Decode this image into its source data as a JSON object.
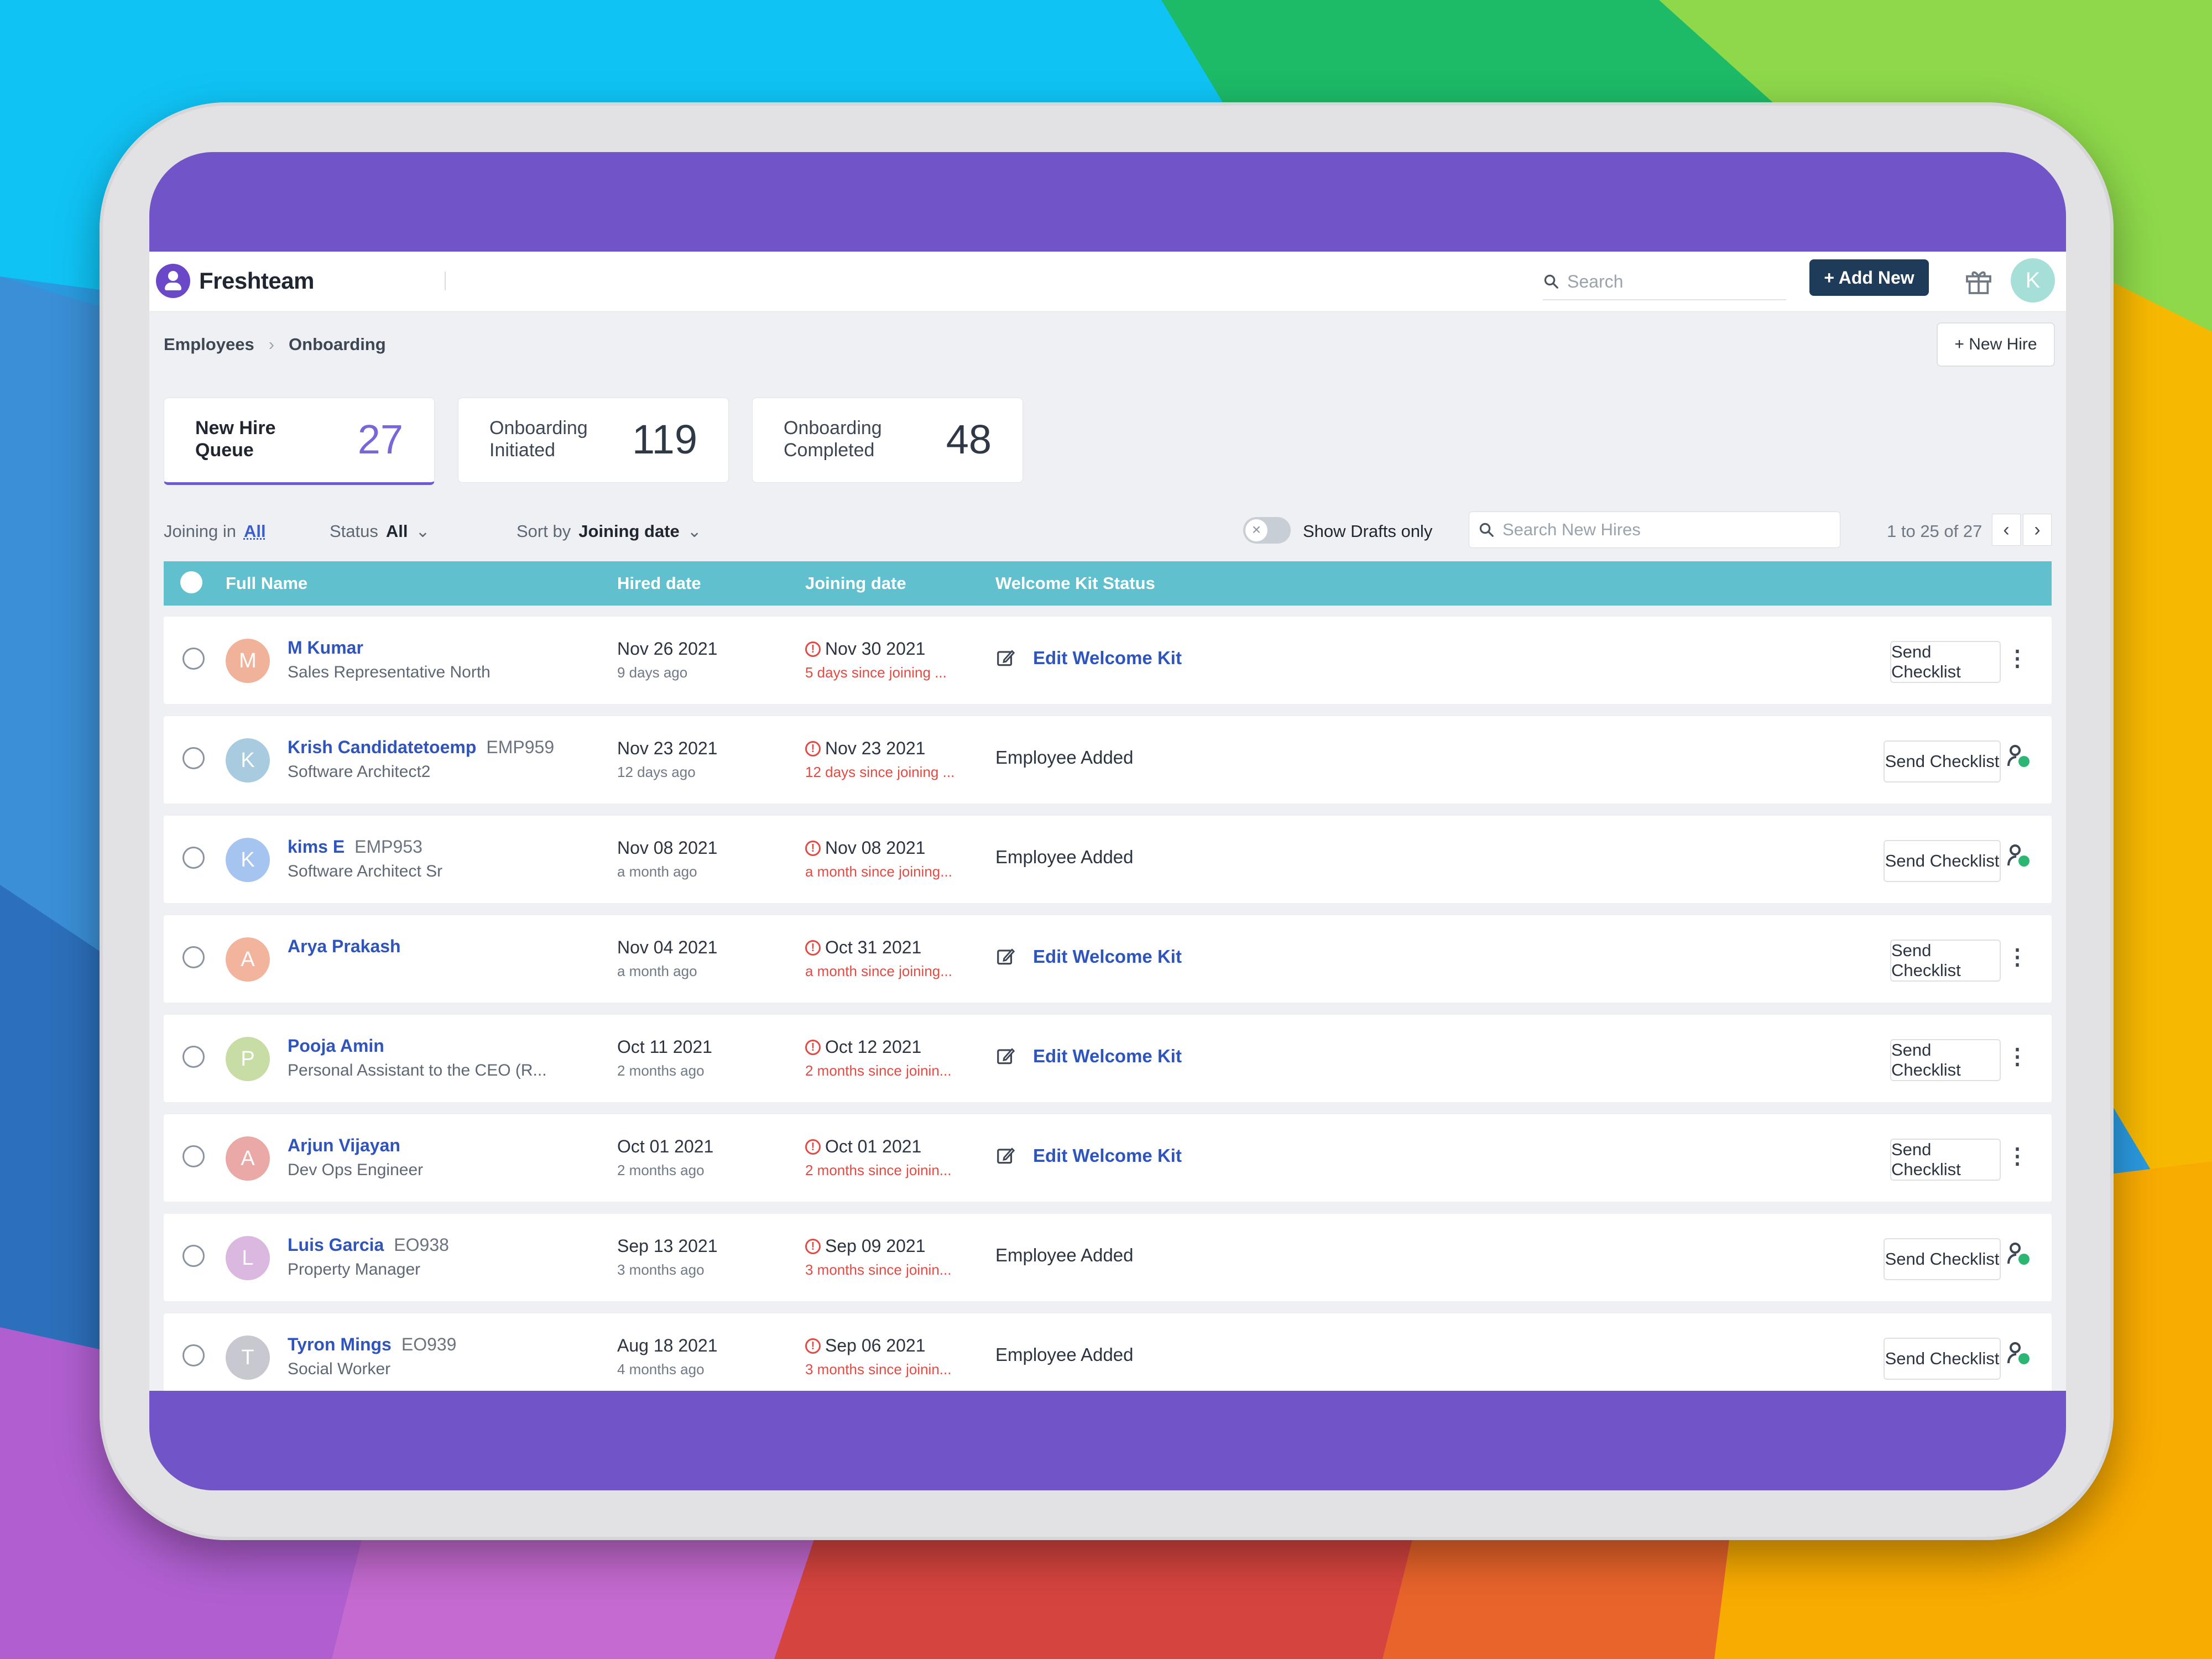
{
  "app": {
    "name": "Freshteam"
  },
  "header": {
    "search_placeholder": "Search",
    "add_new_label": "+ Add New",
    "user_initial": "K"
  },
  "breadcrumb": {
    "root": "Employees",
    "current": "Onboarding"
  },
  "new_hire_button": "+ New Hire",
  "stats": [
    {
      "label": "New Hire Queue",
      "value": "27",
      "active": true
    },
    {
      "label": "Onboarding Initiated",
      "value": "119",
      "active": false
    },
    {
      "label": "Onboarding Completed",
      "value": "48",
      "active": false
    }
  ],
  "filters": {
    "joining_label": "Joining in",
    "joining_value": "All",
    "status_label": "Status",
    "status_value": "All",
    "sort_label": "Sort by",
    "sort_value": "Joining date",
    "drafts_label": "Show Drafts only",
    "search_placeholder": "Search New Hires",
    "pagination": "1 to 25 of 27"
  },
  "table": {
    "columns": [
      "Full Name",
      "Hired date",
      "Joining date",
      "Welcome Kit Status"
    ],
    "send_label": "Send Checklist",
    "rows": [
      {
        "initial": "M",
        "avatar_color": "#f0b39a",
        "name": "M Kumar",
        "code": "",
        "role": "Sales Representative North",
        "hired": "Nov 26 2021",
        "hired_rel": "9 days ago",
        "joining": "Nov 30 2021",
        "joining_rel": "5 days since joining ...",
        "kit": "Edit Welcome Kit",
        "kit_type": "link",
        "action": "menu"
      },
      {
        "initial": "K",
        "avatar_color": "#a9cbe0",
        "name": "Krish Candidatetoemp",
        "code": "EMP959",
        "role": "Software Architect2",
        "hired": "Nov 23 2021",
        "hired_rel": "12 days ago",
        "joining": "Nov 23 2021",
        "joining_rel": "12 days since joining ...",
        "kit": "Employee Added",
        "kit_type": "plain",
        "action": "agent"
      },
      {
        "initial": "K",
        "avatar_color": "#a6c4f0",
        "name": "kims E",
        "code": "EMP953",
        "role": "Software Architect Sr",
        "hired": "Nov 08 2021",
        "hired_rel": "a month ago",
        "joining": "Nov 08 2021",
        "joining_rel": "a month since joining...",
        "kit": "Employee Added",
        "kit_type": "plain",
        "action": "agent"
      },
      {
        "initial": "A",
        "avatar_color": "#f2b49c",
        "name": "Arya Prakash",
        "code": "",
        "role": "",
        "hired": "Nov 04 2021",
        "hired_rel": "a month ago",
        "joining": "Oct 31 2021",
        "joining_rel": "a month since joining...",
        "kit": "Edit Welcome Kit",
        "kit_type": "link",
        "action": "menu"
      },
      {
        "initial": "P",
        "avatar_color": "#c8dca6",
        "name": "Pooja Amin",
        "code": "",
        "role": "Personal Assistant to the CEO (R...",
        "hired": "Oct 11 2021",
        "hired_rel": "2 months ago",
        "joining": "Oct 12 2021",
        "joining_rel": "2 months since joinin...",
        "kit": "Edit Welcome Kit",
        "kit_type": "link",
        "action": "menu"
      },
      {
        "initial": "A",
        "avatar_color": "#eaa9a6",
        "name": "Arjun Vijayan",
        "code": "",
        "role": "Dev Ops Engineer",
        "hired": "Oct 01 2021",
        "hired_rel": "2 months ago",
        "joining": "Oct 01 2021",
        "joining_rel": "2 months since joinin...",
        "kit": "Edit Welcome Kit",
        "kit_type": "link",
        "action": "menu"
      },
      {
        "initial": "L",
        "avatar_color": "#dab8e0",
        "name": "Luis Garcia",
        "code": "EO938",
        "role": "Property Manager",
        "hired": "Sep 13 2021",
        "hired_rel": "3 months ago",
        "joining": "Sep 09 2021",
        "joining_rel": "3 months since joinin...",
        "kit": "Employee Added",
        "kit_type": "plain",
        "action": "agent"
      },
      {
        "initial": "T",
        "avatar_color": "#c8c8d0",
        "name": "Tyron Mings",
        "code": "EO939",
        "role": "Social Worker",
        "hired": "Aug 18 2021",
        "hired_rel": "4 months ago",
        "joining": "Sep 06 2021",
        "joining_rel": "3 months since joinin...",
        "kit": "Employee Added",
        "kit_type": "plain",
        "action": "agent"
      }
    ]
  },
  "icons": {
    "search": "search-icon",
    "gift": "gift-icon",
    "edit": "edit-icon",
    "warning": "warning-icon",
    "more": "more-vertical-icon",
    "agent": "user-check-icon",
    "chevron_down": "chevron-down-icon",
    "prev": "chevron-left-icon",
    "next": "chevron-right-icon"
  },
  "colors": {
    "brand_purple": "#7254c9",
    "table_header": "#61c0ce",
    "link_blue": "#2f55bd",
    "warning_red": "#e04b44",
    "primary_button": "#1f3b5a"
  }
}
